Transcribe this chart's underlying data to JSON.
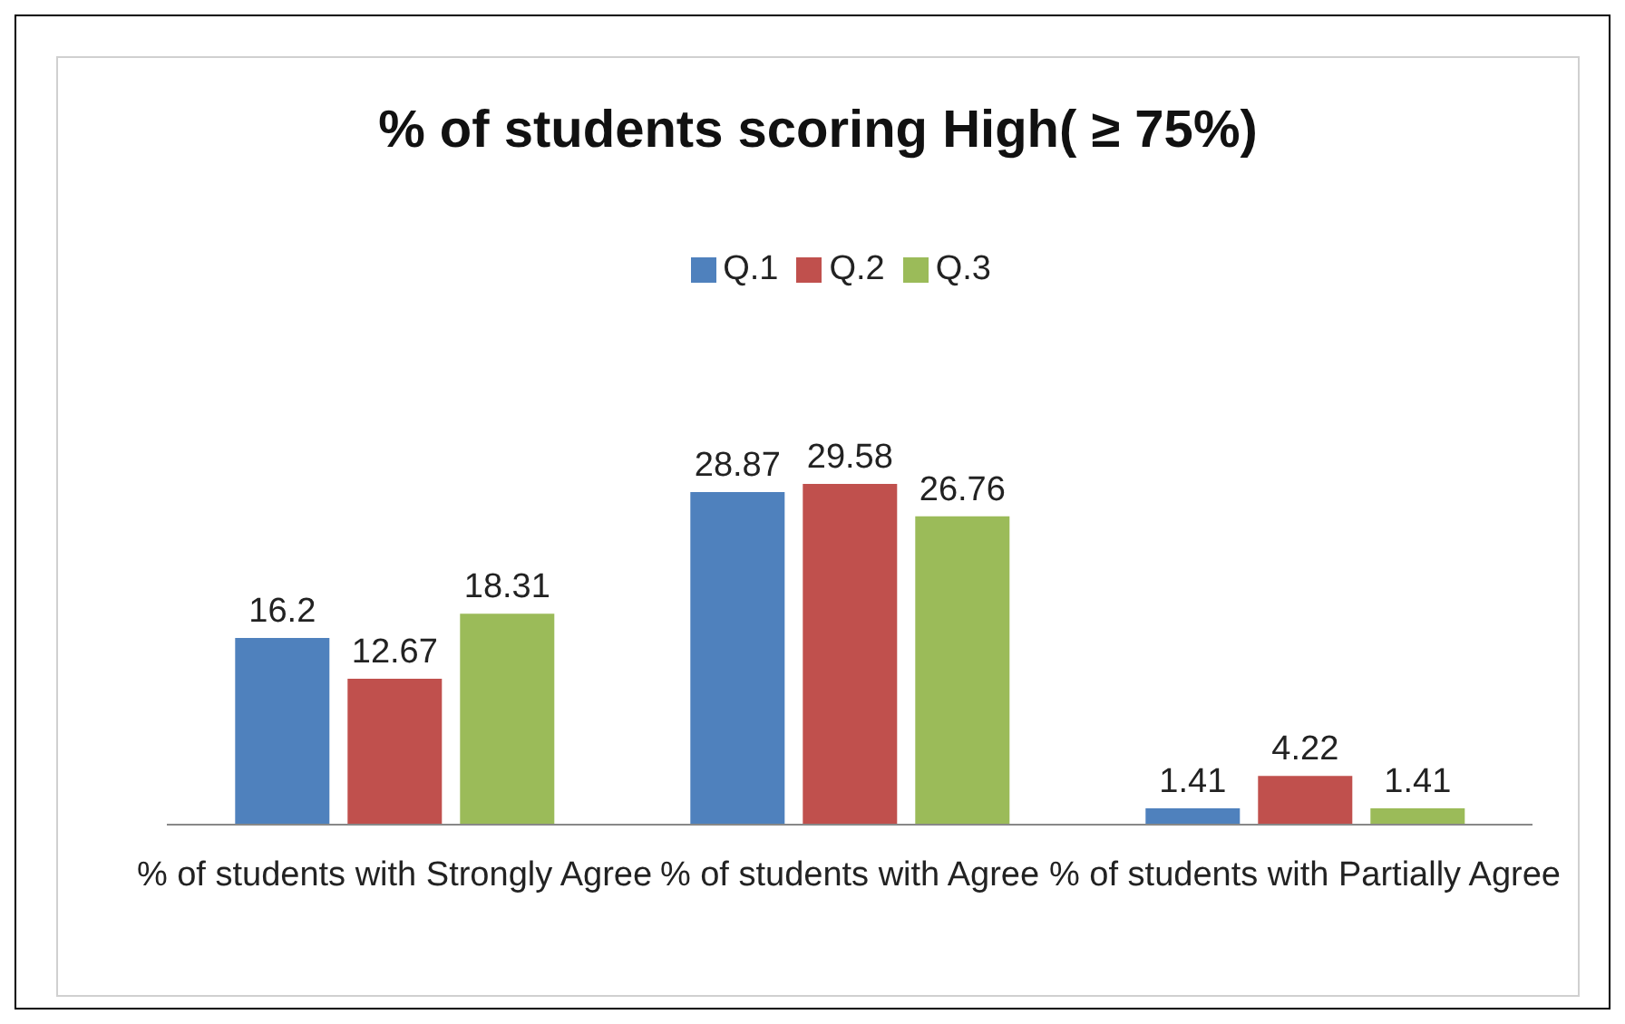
{
  "chart_data": {
    "type": "bar",
    "title": "% of students scoring High( ≥ 75%)",
    "categories": [
      "% of students with Strongly Agree",
      "% of students with Agree",
      "% of students with Partially Agree"
    ],
    "series": [
      {
        "name": "Q.1",
        "color": "#4f81bd",
        "values": [
          16.2,
          28.87,
          1.41
        ]
      },
      {
        "name": "Q.2",
        "color": "#c0504d",
        "values": [
          12.67,
          29.58,
          4.22
        ]
      },
      {
        "name": "Q.3",
        "color": "#9bbb59",
        "values": [
          18.31,
          26.76,
          1.41
        ]
      }
    ],
    "data_labels": true,
    "legend": "top",
    "grid": false
  }
}
